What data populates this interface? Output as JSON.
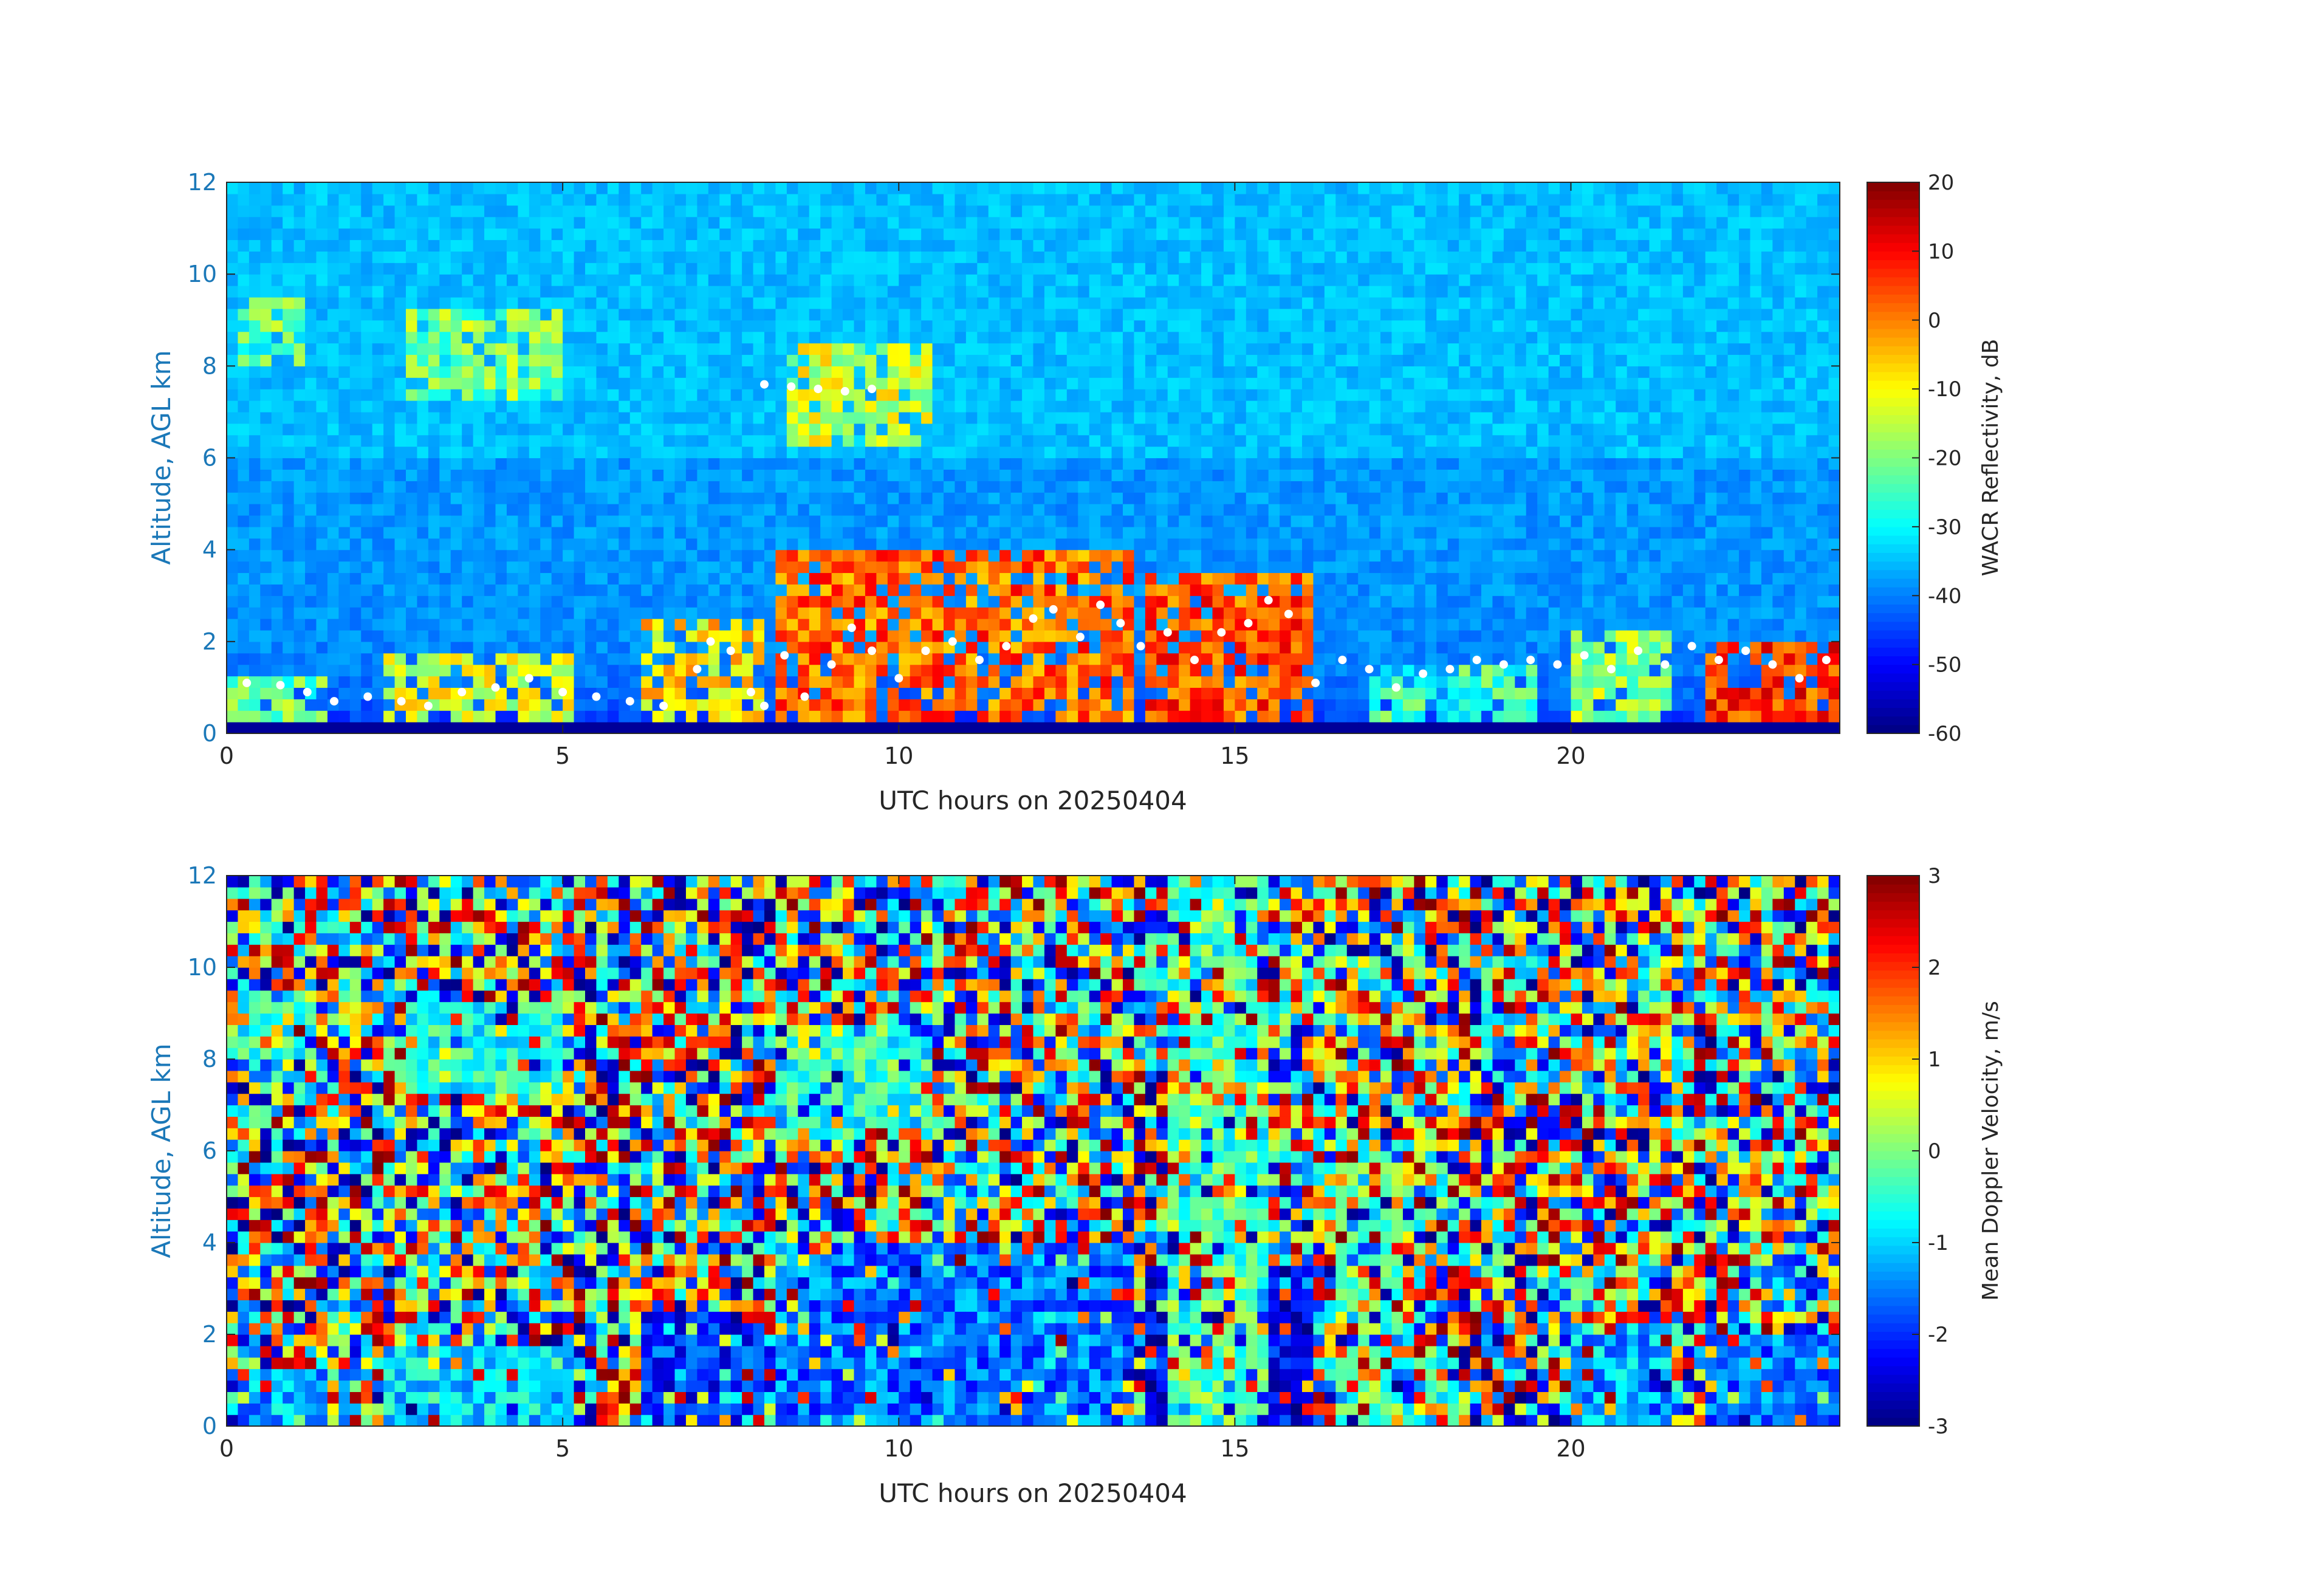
{
  "chart_data": [
    {
      "type": "heatmap",
      "title": "",
      "xlabel": "UTC hours on 20250404",
      "ylabel": "Altitude, AGL km",
      "xlim": [
        0,
        24
      ],
      "ylim": [
        0,
        12
      ],
      "xticks": [
        0,
        5,
        10,
        15,
        20
      ],
      "yticks": [
        0,
        2,
        4,
        6,
        8,
        10,
        12
      ],
      "colormap": "jet",
      "colorbar": {
        "label": "WACR Reflectivity, dB",
        "range": [
          -60,
          20
        ],
        "ticks": [
          20,
          10,
          0,
          -10,
          -20,
          -30,
          -40,
          -50,
          -60
        ]
      },
      "background_value": -38,
      "features": [
        {
          "kind": "cirrus",
          "x_range": [
            0.1,
            1.2
          ],
          "z_range": [
            7.9,
            9.5
          ],
          "value": -22
        },
        {
          "kind": "cirrus",
          "x_range": [
            2.6,
            5.0
          ],
          "z_range": [
            7.3,
            9.2
          ],
          "value": -20
        },
        {
          "kind": "cirrus",
          "x_range": [
            8.3,
            10.5
          ],
          "z_range": [
            6.2,
            8.6
          ],
          "value": -14
        },
        {
          "kind": "low_cloud",
          "x_range": [
            0.0,
            1.5
          ],
          "z_range": [
            0.0,
            1.2
          ],
          "value": -22
        },
        {
          "kind": "low_cloud",
          "x_range": [
            2.4,
            5.2
          ],
          "z_range": [
            0.0,
            1.7
          ],
          "value": -12
        },
        {
          "kind": "low_cloud",
          "x_range": [
            6.2,
            8.0
          ],
          "z_range": [
            0.0,
            2.6
          ],
          "value": -8
        },
        {
          "kind": "low_cloud",
          "x_range": [
            8.2,
            13.5
          ],
          "z_range": [
            0.0,
            4.0
          ],
          "value": 2
        },
        {
          "kind": "low_cloud",
          "x_range": [
            13.6,
            16.2
          ],
          "z_range": [
            0.0,
            3.4
          ],
          "value": 4
        },
        {
          "kind": "low_cloud",
          "x_range": [
            17.0,
            19.5
          ],
          "z_range": [
            0.0,
            1.5
          ],
          "value": -26
        },
        {
          "kind": "low_cloud",
          "x_range": [
            20.0,
            21.5
          ],
          "z_range": [
            0.0,
            2.2
          ],
          "value": -18
        },
        {
          "kind": "low_cloud",
          "x_range": [
            22.0,
            24.0
          ],
          "z_range": [
            0.0,
            2.1
          ],
          "value": 6
        }
      ],
      "overlay": {
        "marker": "white dots",
        "points": [
          [
            0.3,
            1.1
          ],
          [
            0.8,
            1.05
          ],
          [
            1.2,
            0.9
          ],
          [
            1.6,
            0.7
          ],
          [
            2.1,
            0.8
          ],
          [
            2.6,
            0.7
          ],
          [
            3.0,
            0.6
          ],
          [
            3.5,
            0.9
          ],
          [
            4.0,
            1.0
          ],
          [
            4.5,
            1.2
          ],
          [
            5.0,
            0.9
          ],
          [
            5.5,
            0.8
          ],
          [
            6.0,
            0.7
          ],
          [
            6.5,
            0.6
          ],
          [
            7.0,
            1.4
          ],
          [
            7.2,
            2.0
          ],
          [
            7.5,
            1.8
          ],
          [
            7.8,
            0.9
          ],
          [
            8.0,
            0.6
          ],
          [
            8.3,
            1.7
          ],
          [
            8.6,
            0.8
          ],
          [
            9.0,
            1.5
          ],
          [
            9.3,
            2.3
          ],
          [
            9.6,
            1.8
          ],
          [
            10.0,
            1.2
          ],
          [
            10.4,
            1.8
          ],
          [
            10.8,
            2.0
          ],
          [
            11.2,
            1.6
          ],
          [
            11.6,
            1.9
          ],
          [
            12.0,
            2.5
          ],
          [
            12.3,
            2.7
          ],
          [
            12.7,
            2.1
          ],
          [
            13.0,
            2.8
          ],
          [
            13.3,
            2.4
          ],
          [
            13.6,
            1.9
          ],
          [
            14.0,
            2.2
          ],
          [
            14.4,
            1.6
          ],
          [
            14.8,
            2.2
          ],
          [
            15.2,
            2.4
          ],
          [
            15.5,
            2.9
          ],
          [
            15.8,
            2.6
          ],
          [
            16.2,
            1.1
          ],
          [
            16.6,
            1.6
          ],
          [
            17.0,
            1.4
          ],
          [
            17.4,
            1.0
          ],
          [
            17.8,
            1.3
          ],
          [
            18.2,
            1.4
          ],
          [
            18.6,
            1.6
          ],
          [
            19.0,
            1.5
          ],
          [
            19.4,
            1.6
          ],
          [
            19.8,
            1.5
          ],
          [
            20.2,
            1.7
          ],
          [
            20.6,
            1.4
          ],
          [
            21.0,
            1.8
          ],
          [
            21.4,
            1.5
          ],
          [
            21.8,
            1.9
          ],
          [
            22.2,
            1.6
          ],
          [
            22.6,
            1.8
          ],
          [
            23.0,
            1.5
          ],
          [
            23.4,
            1.2
          ],
          [
            23.8,
            1.6
          ],
          [
            8.0,
            7.6
          ],
          [
            8.4,
            7.55
          ],
          [
            8.8,
            7.5
          ],
          [
            9.2,
            7.45
          ],
          [
            9.6,
            7.5
          ]
        ]
      }
    },
    {
      "type": "heatmap",
      "title": "",
      "xlabel": "UTC hours on 20250404",
      "ylabel": "Altitude, AGL km",
      "xlim": [
        0,
        24
      ],
      "ylim": [
        0,
        12
      ],
      "xticks": [
        0,
        5,
        10,
        15,
        20
      ],
      "yticks": [
        0,
        2,
        4,
        6,
        8,
        10,
        12
      ],
      "colormap": "jet",
      "colorbar": {
        "label": "Mean Doppler Velocity, m/s",
        "range": [
          -3,
          3
        ],
        "ticks": [
          3,
          2,
          1,
          0,
          -1,
          -2,
          -3
        ]
      },
      "background": "noise spanning -3 to 3",
      "features": [
        {
          "kind": "cirrus",
          "x_range": [
            0.1,
            1.2
          ],
          "z_range": [
            7.9,
            9.5
          ],
          "value": -0.6
        },
        {
          "kind": "cirrus",
          "x_range": [
            2.6,
            5.0
          ],
          "z_range": [
            7.3,
            9.2
          ],
          "value": -0.6
        },
        {
          "kind": "cirrus",
          "x_range": [
            8.3,
            10.5
          ],
          "z_range": [
            6.2,
            8.6
          ],
          "value": -0.5
        },
        {
          "kind": "low_cloud",
          "x_range": [
            0.0,
            1.5
          ],
          "z_range": [
            0.0,
            1.3
          ],
          "value": -1.3
        },
        {
          "kind": "low_cloud",
          "x_range": [
            2.4,
            5.2
          ],
          "z_range": [
            0.0,
            1.7
          ],
          "value": -1.0
        },
        {
          "kind": "low_cloud",
          "x_range": [
            6.2,
            8.0
          ],
          "z_range": [
            0.0,
            2.6
          ],
          "value": -2.0
        },
        {
          "kind": "low_cloud",
          "x_range": [
            8.2,
            13.5
          ],
          "z_range": [
            0.0,
            4.0
          ],
          "value": -1.6
        },
        {
          "kind": "low_cloud",
          "x_range": [
            13.6,
            16.2
          ],
          "z_range": [
            0.0,
            3.4
          ],
          "value": -2.4
        },
        {
          "kind": "low_cloud",
          "x_range": [
            20.0,
            21.5
          ],
          "z_range": [
            0.0,
            2.2
          ],
          "value": -1.2
        },
        {
          "kind": "low_cloud",
          "x_range": [
            22.0,
            24.0
          ],
          "z_range": [
            0.0,
            2.1
          ],
          "value": -1.6
        },
        {
          "kind": "vertical_band",
          "x_range": [
            14.0,
            15.5
          ],
          "z_range": [
            0.0,
            12.0
          ],
          "value": -0.3
        },
        {
          "kind": "vertical_band",
          "x_range": [
            16.5,
            17.5
          ],
          "z_range": [
            0.0,
            6.0
          ],
          "value": -0.2
        }
      ]
    }
  ]
}
